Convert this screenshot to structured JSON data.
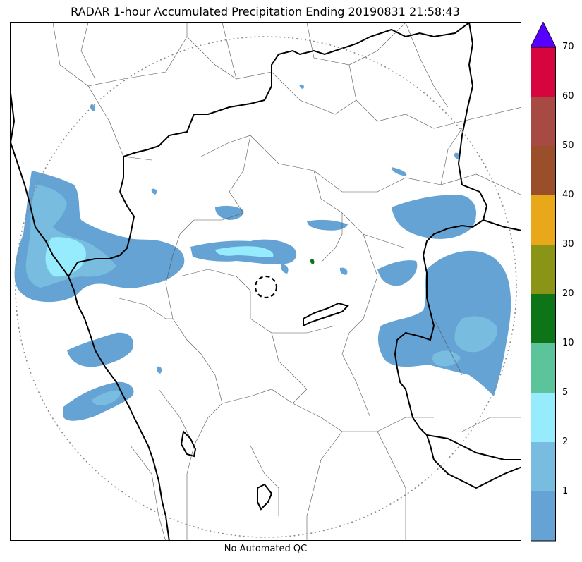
{
  "title": "RADAR 1-hour Accumulated Precipitation Ending 20190831 21:58:43",
  "footer_note": "No Automated QC",
  "colorbar": {
    "extend": "max",
    "extend_color": "#5500ff",
    "levels": [
      {
        "label": "",
        "color": "#64a3d4"
      },
      {
        "label": "1",
        "color": "#78bce0"
      },
      {
        "label": "2",
        "color": "#96ecfc"
      },
      {
        "label": "5",
        "color": "#5cc49a"
      },
      {
        "label": "10",
        "color": "#0d7518"
      },
      {
        "label": "20",
        "color": "#8a9416"
      },
      {
        "label": "30",
        "color": "#e8a81a"
      },
      {
        "label": "40",
        "color": "#9a4e2a"
      },
      {
        "label": "50",
        "color": "#a84a44"
      },
      {
        "label": "60",
        "color": "#d6053e"
      }
    ],
    "top_label": "70"
  },
  "map": {
    "radar_range_ring": "dotted",
    "radar_site_marker": "dashed-circle",
    "colors": {
      "light_rain": "#64a3d4",
      "moderate_rain": "#78bce0",
      "heavy_rain": "#96ecfc",
      "state_border": "#000000",
      "district_border": "#555555",
      "range_ring": "#888888"
    }
  }
}
